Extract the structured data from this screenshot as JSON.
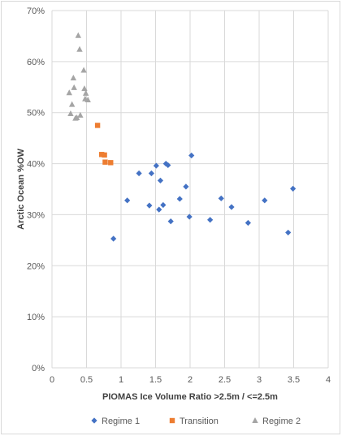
{
  "chart_data": {
    "type": "scatter",
    "xlabel": "PIOMAS Ice Volume Ratio >2.5m / <=2.5m",
    "ylabel": "Arctic Ocean %OW",
    "xlim": [
      0,
      4
    ],
    "ylim": [
      0,
      70
    ],
    "x_ticks": [
      0,
      0.5,
      1,
      1.5,
      2,
      2.5,
      3,
      3.5,
      4
    ],
    "x_tick_labels": [
      "0",
      "0.5",
      "1",
      "1.5",
      "2",
      "2.5",
      "3",
      "3.5",
      "4"
    ],
    "y_ticks": [
      0,
      10,
      20,
      30,
      40,
      50,
      60,
      70
    ],
    "y_tick_labels": [
      "0%",
      "10%",
      "20%",
      "30%",
      "40%",
      "50%",
      "60%",
      "70%"
    ],
    "grid": "vertical-and-horizontal",
    "legend_position": "bottom",
    "series": [
      {
        "name": "Regime 1",
        "marker": "diamond",
        "color": "#4472c4",
        "points": [
          [
            0.89,
            25.3
          ],
          [
            1.09,
            32.8
          ],
          [
            1.26,
            38.1
          ],
          [
            1.41,
            31.8
          ],
          [
            1.44,
            38.1
          ],
          [
            1.51,
            39.6
          ],
          [
            1.55,
            31.0
          ],
          [
            1.57,
            36.7
          ],
          [
            1.61,
            31.9
          ],
          [
            1.65,
            40.0
          ],
          [
            1.68,
            39.7
          ],
          [
            1.72,
            28.7
          ],
          [
            1.85,
            33.1
          ],
          [
            1.94,
            35.5
          ],
          [
            1.99,
            29.6
          ],
          [
            2.02,
            41.6
          ],
          [
            2.29,
            29.0
          ],
          [
            2.45,
            33.2
          ],
          [
            2.6,
            31.5
          ],
          [
            2.84,
            28.4
          ],
          [
            3.08,
            32.8
          ],
          [
            3.42,
            26.5
          ],
          [
            3.49,
            35.1
          ]
        ]
      },
      {
        "name": "Transition",
        "marker": "square",
        "color": "#ed7d31",
        "points": [
          [
            0.66,
            47.5
          ],
          [
            0.72,
            41.8
          ],
          [
            0.76,
            41.7
          ],
          [
            0.77,
            40.3
          ],
          [
            0.85,
            40.2
          ]
        ]
      },
      {
        "name": "Regime 2",
        "marker": "triangle",
        "color": "#a5a5a5",
        "points": [
          [
            0.25,
            53.9
          ],
          [
            0.27,
            49.8
          ],
          [
            0.29,
            51.6
          ],
          [
            0.31,
            56.8
          ],
          [
            0.32,
            54.9
          ],
          [
            0.34,
            48.9
          ],
          [
            0.36,
            49.0
          ],
          [
            0.38,
            65.1
          ],
          [
            0.4,
            62.4
          ],
          [
            0.41,
            49.5
          ],
          [
            0.46,
            58.3
          ],
          [
            0.47,
            54.7
          ],
          [
            0.48,
            52.7
          ],
          [
            0.49,
            53.8
          ],
          [
            0.52,
            52.5
          ]
        ]
      }
    ]
  }
}
